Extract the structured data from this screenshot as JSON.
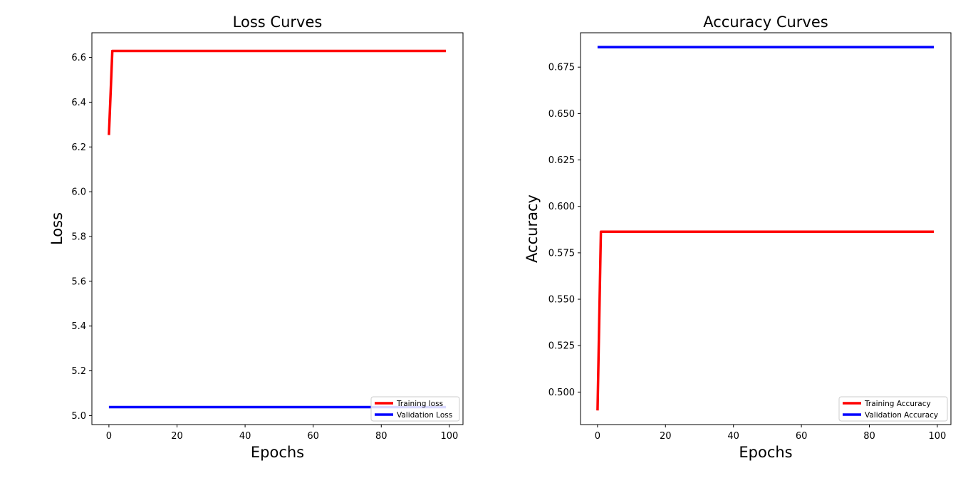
{
  "chart_data": [
    {
      "type": "line",
      "title": "Loss Curves",
      "xlabel": "Epochs",
      "ylabel": "Loss",
      "xlim": [
        -5,
        104
      ],
      "ylim": [
        4.96,
        6.71
      ],
      "xticks": [
        0,
        20,
        40,
        60,
        80,
        100
      ],
      "xtick_labels": [
        "0",
        "20",
        "40",
        "60",
        "80",
        "100"
      ],
      "yticks": [
        5.0,
        5.2,
        5.4,
        5.6,
        5.8,
        6.0,
        6.2,
        6.4,
        6.6
      ],
      "ytick_labels": [
        "5.0",
        "5.2",
        "5.4",
        "5.6",
        "5.8",
        "6.0",
        "6.2",
        "6.4",
        "6.6"
      ],
      "grid": false,
      "legend_position": "lower-right",
      "series": [
        {
          "name": "Training loss",
          "color": "#ff0000",
          "x": [
            0,
            1,
            99
          ],
          "y": [
            6.253,
            6.629,
            6.629
          ]
        },
        {
          "name": "Validation Loss",
          "color": "#0000ff",
          "x": [
            0,
            99
          ],
          "y": [
            5.038,
            5.038
          ]
        }
      ]
    },
    {
      "type": "line",
      "title": "Accuracy Curves",
      "xlabel": "Epochs",
      "ylabel": "Accuracy",
      "xlim": [
        -5,
        104
      ],
      "ylim": [
        0.4825,
        0.6935
      ],
      "xticks": [
        0,
        20,
        40,
        60,
        80,
        100
      ],
      "xtick_labels": [
        "0",
        "20",
        "40",
        "60",
        "80",
        "100"
      ],
      "yticks": [
        0.5,
        0.525,
        0.55,
        0.575,
        0.6,
        0.625,
        0.65,
        0.675
      ],
      "ytick_labels": [
        "0.500",
        "0.525",
        "0.550",
        "0.575",
        "0.600",
        "0.625",
        "0.650",
        "0.675"
      ],
      "grid": false,
      "legend_position": "lower-right",
      "series": [
        {
          "name": "Training Accuracy",
          "color": "#ff0000",
          "x": [
            0,
            1,
            99
          ],
          "y": [
            0.4901,
            0.5864,
            0.5864
          ]
        },
        {
          "name": "Validation Accuracy",
          "color": "#0000ff",
          "x": [
            0,
            99
          ],
          "y": [
            0.6858,
            0.6858
          ]
        }
      ]
    }
  ]
}
